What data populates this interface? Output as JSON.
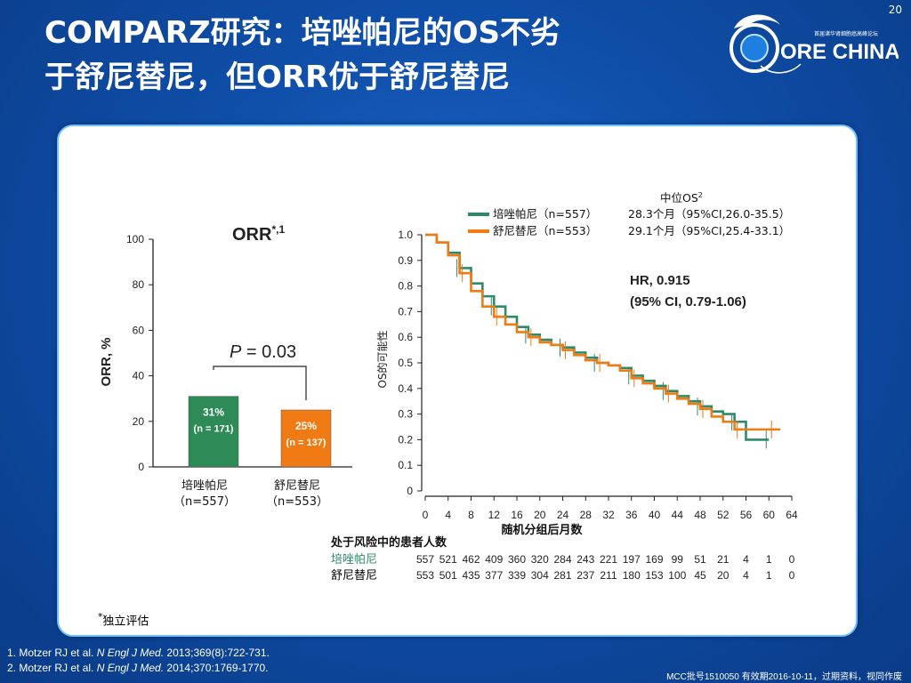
{
  "slide": {
    "number": "20",
    "title_line1": "COMPARZ研究：培唑帕尼的OS不劣",
    "title_line2": "于舒尼替尼，但ORR优于舒尼替尼",
    "logo_text": "ORE CHINA",
    "logo_sub": "首届诸华肾细胞癌高峰论坛"
  },
  "orr_chart": {
    "title": "ORR",
    "title_sup": "*,1",
    "ylabel": "ORR, %",
    "pvalue_label": "P",
    "pvalue_text": " = 0.03",
    "footnote": "独立评估",
    "footnote_mark": "*",
    "bars": [
      {
        "label_line1": "培唑帕尼",
        "label_line2": "（n=557）",
        "value": 31,
        "value_text": "31%",
        "n_text": "(n = 171)",
        "color": "#2e8b57"
      },
      {
        "label_line1": "舒尼替尼",
        "label_line2": "（n=553）",
        "value": 25,
        "value_text": "25%",
        "n_text": "(n = 137)",
        "color": "#f07a14"
      }
    ]
  },
  "km_chart": {
    "ylabel": "OS的可能性",
    "xlabel": "随机分组后月数",
    "legend_title": "中位OS",
    "legend_title_sup": "2",
    "hr_line1": "HR, 0.915",
    "hr_line2": "(95% CI, 0.79-1.06)",
    "risk_title": "处于风险中的患者人数"
  },
  "chart_data": [
    {
      "type": "bar",
      "title": "ORR",
      "ylabel": "ORR, %",
      "ylim": [
        0,
        100
      ],
      "yticks": [
        0,
        20,
        40,
        60,
        80,
        100
      ],
      "categories": [
        "培唑帕尼（n=557）",
        "舒尼替尼（n=553）"
      ],
      "values": [
        31,
        25
      ],
      "data_labels": [
        "31% (n = 171)",
        "25% (n = 137)"
      ],
      "annotation": "P = 0.03"
    },
    {
      "type": "line",
      "xlabel": "随机分组后月数",
      "ylabel": "OS的可能性",
      "xlim": [
        0,
        64
      ],
      "ylim": [
        0,
        1.0
      ],
      "xticks": [
        0,
        4,
        8,
        12,
        16,
        20,
        24,
        28,
        32,
        36,
        40,
        44,
        48,
        52,
        56,
        60,
        64
      ],
      "yticks": [
        0,
        0.1,
        0.2,
        0.3,
        0.4,
        0.5,
        0.6,
        0.7,
        0.8,
        0.9,
        1.0
      ],
      "series": [
        {
          "name": "培唑帕尼（n=557）",
          "median_text": "28.3个月（95%CI,26.0-35.5）",
          "color": "#2e8b6a",
          "x": [
            0,
            2,
            4,
            6,
            8,
            10,
            12,
            14,
            16,
            18,
            20,
            22,
            24,
            26,
            28,
            30,
            32,
            34,
            36,
            38,
            40,
            42,
            44,
            46,
            48,
            50,
            52,
            54,
            56,
            58,
            60
          ],
          "y": [
            1.0,
            0.97,
            0.93,
            0.87,
            0.81,
            0.76,
            0.72,
            0.68,
            0.64,
            0.61,
            0.59,
            0.57,
            0.56,
            0.54,
            0.52,
            0.5,
            0.49,
            0.48,
            0.45,
            0.43,
            0.41,
            0.39,
            0.37,
            0.35,
            0.33,
            0.31,
            0.3,
            0.27,
            0.2,
            0.2,
            0.2
          ]
        },
        {
          "name": "舒尼替尼（n=553）",
          "median_text": "29.1个月（95%CI,25.4-33.1）",
          "color": "#f07a14",
          "x": [
            0,
            2,
            4,
            6,
            8,
            10,
            12,
            14,
            16,
            18,
            20,
            22,
            24,
            26,
            28,
            30,
            32,
            34,
            36,
            38,
            40,
            42,
            44,
            46,
            48,
            50,
            52,
            54,
            56,
            58,
            60,
            62
          ],
          "y": [
            1.0,
            0.97,
            0.92,
            0.85,
            0.78,
            0.72,
            0.68,
            0.65,
            0.62,
            0.6,
            0.58,
            0.57,
            0.55,
            0.53,
            0.51,
            0.5,
            0.49,
            0.47,
            0.44,
            0.42,
            0.4,
            0.38,
            0.36,
            0.34,
            0.32,
            0.29,
            0.27,
            0.24,
            0.24,
            0.24,
            0.24,
            0.24
          ]
        }
      ],
      "risk_table": {
        "title": "处于风险中的患者人数",
        "rows": [
          {
            "label": "培唑帕尼",
            "color": "#2e8b6a",
            "values": [
              "557",
              "521",
              "462",
              "409",
              "360",
              "320",
              "284",
              "243",
              "221",
              "197",
              "169",
              "99",
              "51",
              "21",
              "4",
              "1",
              "0"
            ]
          },
          {
            "label": "舒尼替尼",
            "color": "#000000",
            "values": [
              "553",
              "501",
              "435",
              "377",
              "339",
              "304",
              "281",
              "237",
              "211",
              "180",
              "153",
              "100",
              "45",
              "20",
              "4",
              "1",
              "0"
            ]
          }
        ]
      }
    }
  ],
  "references": [
    {
      "prefix": "1. Motzer RJ et al. ",
      "journal": "N Engl J Med.",
      "suffix": " 2013;369(8):722-731."
    },
    {
      "prefix": "2. Motzer RJ et al. ",
      "journal": "N Engl J Med.",
      "suffix": " 2014;370:1769-1770."
    }
  ],
  "approval_text": "MCC批号1510050  有效期2016-10-11，过期资料，视同作废",
  "colors": {
    "background": "#0f4ea8",
    "panel_border": "#6ec1ff",
    "pazopanib": "#2e8b6a",
    "sunitinib": "#f07a14"
  }
}
